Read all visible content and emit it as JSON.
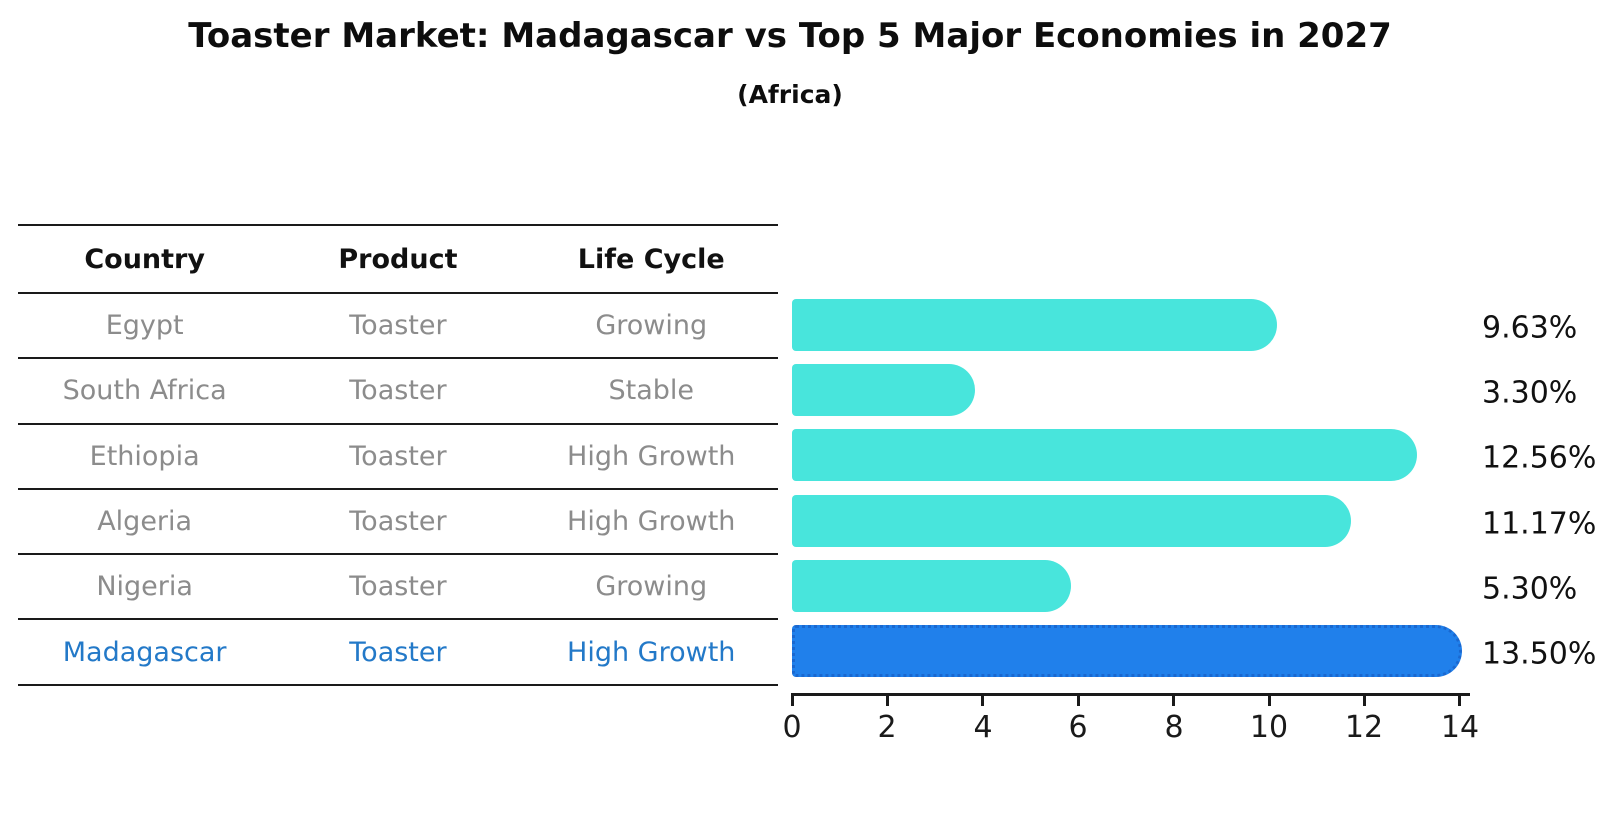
{
  "title": "Toaster Market: Madagascar vs Top 5 Major Economies in 2027",
  "subtitle": "(Africa)",
  "table": {
    "headers": [
      "Country",
      "Product",
      "Life Cycle"
    ]
  },
  "chart_data": {
    "type": "bar",
    "orientation": "horizontal",
    "title": "Toaster Market: Madagascar vs Top 5 Major Economies in 2027",
    "subtitle": "(Africa)",
    "xlim": [
      0,
      14
    ],
    "x_ticks": [
      0,
      2,
      4,
      6,
      8,
      10,
      12,
      14
    ],
    "grid": false,
    "legend": "none",
    "rows": [
      {
        "country": "Egypt",
        "product": "Toaster",
        "life_cycle": "Growing",
        "value": 9.63,
        "value_label": "9.63%",
        "highlight": false
      },
      {
        "country": "South Africa",
        "product": "Toaster",
        "life_cycle": "Stable",
        "value": 3.3,
        "value_label": "3.30%",
        "highlight": false
      },
      {
        "country": "Ethiopia",
        "product": "Toaster",
        "life_cycle": "High Growth",
        "value": 12.56,
        "value_label": "12.56%",
        "highlight": false
      },
      {
        "country": "Algeria",
        "product": "Toaster",
        "life_cycle": "High Growth",
        "value": 11.17,
        "value_label": "11.17%",
        "highlight": false
      },
      {
        "country": "Nigeria",
        "product": "Toaster",
        "life_cycle": "Growing",
        "value": 5.3,
        "value_label": "5.30%",
        "highlight": false
      },
      {
        "country": "Madagascar",
        "product": "Toaster",
        "life_cycle": "High Growth",
        "value": 13.5,
        "value_label": "13.50%",
        "highlight": true
      }
    ]
  },
  "colors": {
    "bar": "#48e5dc",
    "highlight_bar": "#2080eb",
    "highlight_edge": "#1a68d0",
    "highlight_text": "#2379c8",
    "row_text": "#8c8c8c",
    "heading_text": "#0d0d0d"
  }
}
